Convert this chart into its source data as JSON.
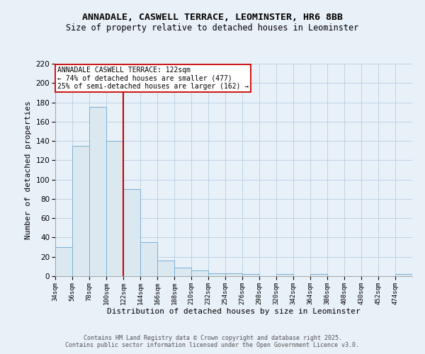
{
  "title_line1": "ANNADALE, CASWELL TERRACE, LEOMINSTER, HR6 8BB",
  "title_line2": "Size of property relative to detached houses in Leominster",
  "xlabel": "Distribution of detached houses by size in Leominster",
  "ylabel": "Number of detached properties",
  "annotation_title": "ANNADALE CASWELL TERRACE: 122sqm",
  "annotation_line1": "← 74% of detached houses are smaller (477)",
  "annotation_line2": "25% of semi-detached houses are larger (162) →",
  "property_size": 122,
  "bin_edges": [
    34,
    56,
    78,
    100,
    122,
    144,
    166,
    188,
    210,
    232,
    254,
    276,
    298,
    320,
    342,
    364,
    386,
    408,
    430,
    452,
    474,
    496
  ],
  "bin_labels": [
    "34sqm",
    "56sqm",
    "78sqm",
    "100sqm",
    "122sqm",
    "144sqm",
    "166sqm",
    "188sqm",
    "210sqm",
    "232sqm",
    "254sqm",
    "276sqm",
    "298sqm",
    "320sqm",
    "342sqm",
    "364sqm",
    "386sqm",
    "408sqm",
    "430sqm",
    "452sqm",
    "474sqm"
  ],
  "counts": [
    30,
    135,
    175,
    140,
    90,
    35,
    16,
    9,
    6,
    3,
    3,
    2,
    0,
    2,
    0,
    2,
    0,
    0,
    0,
    0,
    2
  ],
  "bar_color": "#dce8f0",
  "bar_edge_color": "#7ab0d4",
  "red_line_color": "#cc0000",
  "grid_color": "#b8cfe0",
  "background_color": "#e8f0f8",
  "plot_bg_color": "#e8f0f8",
  "footer_line1": "Contains HM Land Registry data © Crown copyright and database right 2025.",
  "footer_line2": "Contains public sector information licensed under the Open Government Licence v3.0."
}
